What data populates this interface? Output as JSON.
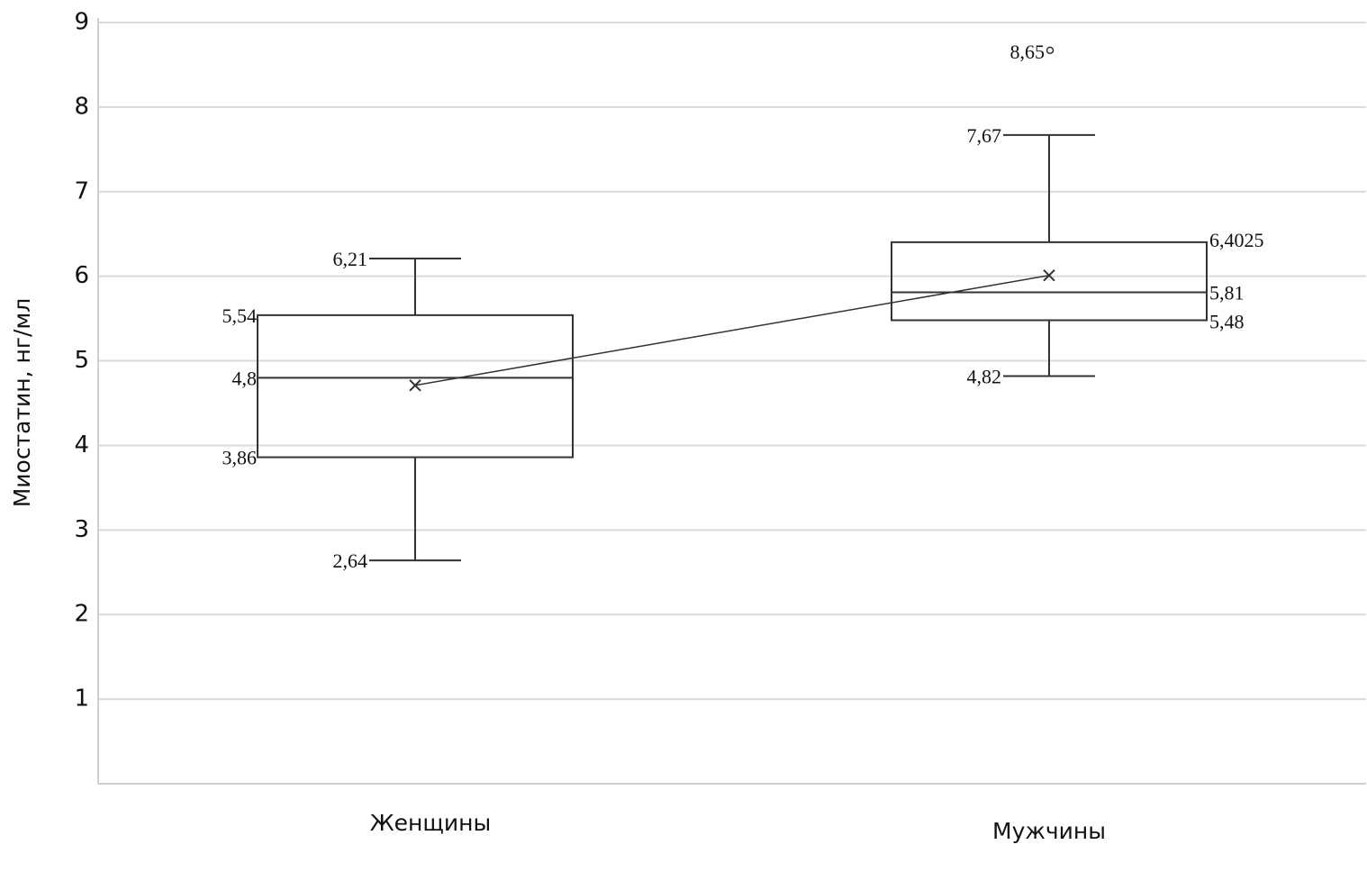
{
  "chart_data": {
    "type": "box",
    "y_label": "Миостатин, нг/мл",
    "categories": [
      "Женщины",
      "Мужчины"
    ],
    "boxes": [
      {
        "min": 2.64,
        "q1": 3.86,
        "median": 4.8,
        "q3": 5.54,
        "max": 6.21,
        "mean": 4.71,
        "outliers": [],
        "value_labels": {
          "min": "2,64",
          "q1": "3,86",
          "median": "4,8",
          "q3": "5,54",
          "max": "6,21"
        },
        "outlier_labels": []
      },
      {
        "min": 4.82,
        "q1": 5.48,
        "median": 5.81,
        "q3": 6.4025,
        "max": 7.67,
        "mean": 6.01,
        "outliers": [
          8.65
        ],
        "value_labels": {
          "min": "4,82",
          "q1": "5,48",
          "median": "5,81",
          "q3": "6,4025",
          "max": "7,67"
        },
        "outlier_labels": [
          "8,65"
        ]
      }
    ],
    "color": "#333333",
    "mean_line": true,
    "ylim": [
      0,
      9
    ],
    "yticks": [
      1,
      2,
      3,
      4,
      5,
      6,
      7,
      8,
      9
    ],
    "grid": true
  }
}
